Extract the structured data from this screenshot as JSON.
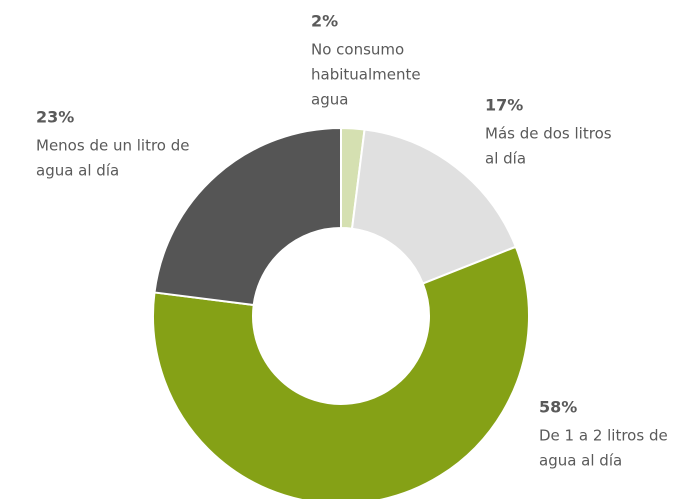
{
  "chart_data": {
    "type": "donut",
    "categories": [
      [
        "No consumo",
        "habitualmente",
        "agua"
      ],
      [
        "Más de dos litros",
        "al día"
      ],
      [
        "De 1 a 2 litros de",
        "agua al día"
      ],
      [
        "Menos de un litro de",
        "agua al día"
      ]
    ],
    "values": [
      2,
      17,
      58,
      23
    ],
    "value_labels": [
      "2%",
      "17%",
      "58%",
      "23%"
    ],
    "colors": [
      "#d5e0b1",
      "#e0e0e0",
      "#85a116",
      "#555555"
    ]
  }
}
